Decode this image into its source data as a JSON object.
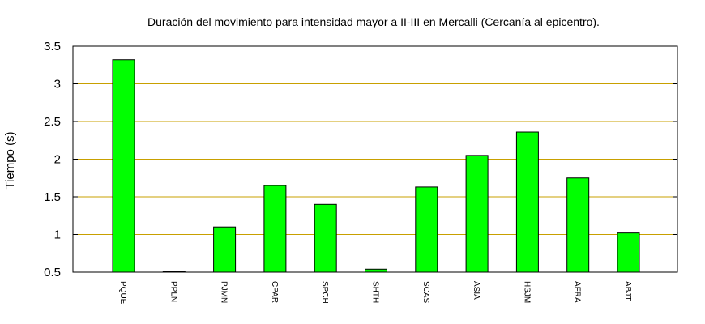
{
  "chart_data": {
    "type": "bar",
    "title": "Duración del movimiento para intensidad mayor a II-III en Mercalli (Cercanía al epicentro).",
    "xlabel": "",
    "ylabel": "Tiempo (s)",
    "ylim": [
      0.5,
      3.5
    ],
    "yticks": [
      "0.5",
      "1",
      "1.5",
      "2",
      "2.5",
      "3",
      "3.5"
    ],
    "grid": true,
    "categories": [
      "PQUE",
      "PPLN",
      "PJMN",
      "CPAR",
      "SPCH",
      "SHTH",
      "SCAS",
      "ASIA",
      "HSJM",
      "AFRA",
      "ABJT"
    ],
    "values": [
      3.32,
      0.51,
      1.1,
      1.65,
      1.4,
      0.54,
      1.63,
      2.05,
      2.36,
      1.75,
      1.02
    ],
    "colors": {
      "bar_fill": "#00ff00",
      "bar_stroke": "#000000",
      "grid": "#c8a000",
      "axis": "#000000"
    }
  }
}
